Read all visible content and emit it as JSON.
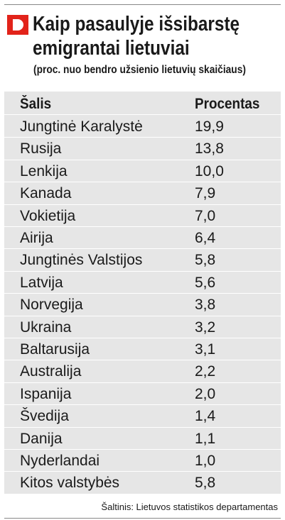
{
  "header": {
    "title_lines": [
      "Kaip pasaulyje išsibarstę",
      "emigrantai lietuviai"
    ],
    "subtitle": "(proc. nuo bendro užsienio lietuvių skaičiaus)"
  },
  "table": {
    "columns": [
      "Šalis",
      "Procentas"
    ],
    "rows": [
      [
        "Jungtinė Karalystė",
        "19,9"
      ],
      [
        "Rusija",
        "13,8"
      ],
      [
        "Lenkija",
        "10,0"
      ],
      [
        "Kanada",
        "7,9"
      ],
      [
        "Vokietija",
        "7,0"
      ],
      [
        "Airija",
        "6,4"
      ],
      [
        "Jungtinės Valstijos",
        "5,8"
      ],
      [
        "Latvija",
        "5,6"
      ],
      [
        "Norvegija",
        "3,8"
      ],
      [
        "Ukraina",
        "3,2"
      ],
      [
        "Baltarusija",
        "3,1"
      ],
      [
        "Australija",
        "2,2"
      ],
      [
        "Ispanija",
        "2,0"
      ],
      [
        "Švedija",
        "1,4"
      ],
      [
        "Danija",
        "1,1"
      ],
      [
        "Nyderlandai",
        "1,0"
      ],
      [
        "Kitos valstybės",
        "5,8"
      ]
    ]
  },
  "source": "Šaltinis: Lietuvos statistikos departamentas"
}
